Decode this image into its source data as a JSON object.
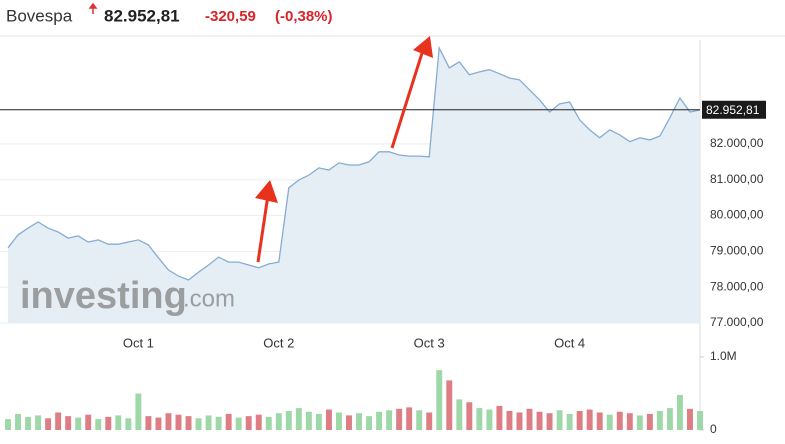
{
  "chart_data": {
    "type": "line",
    "title": "Bovespa",
    "change": "-320,59",
    "change_percent": "(-0,38%)",
    "line_color": "#86acd4",
    "area_color": "#e5eef5",
    "price_line": {
      "value": 82952.81,
      "label": "82.952,81"
    },
    "watermark": {
      "brand": "investing",
      "suffix": ".com"
    },
    "categories": [
      null,
      null,
      null,
      null,
      null,
      null,
      null,
      null,
      null,
      null,
      null,
      null,
      null,
      "Oct 1",
      null,
      null,
      null,
      null,
      null,
      null,
      null,
      null,
      null,
      null,
      null,
      null,
      null,
      "Oct 2",
      null,
      null,
      null,
      null,
      null,
      null,
      null,
      null,
      null,
      null,
      null,
      null,
      null,
      null,
      "Oct 3",
      null,
      null,
      null,
      null,
      null,
      null,
      null,
      null,
      null,
      null,
      null,
      null,
      null,
      "Oct 4",
      null,
      null,
      null,
      null,
      null,
      null,
      null,
      null,
      null,
      null,
      null,
      null,
      null
    ],
    "values": [
      79100,
      79460,
      79650,
      79820,
      79650,
      79540,
      79370,
      79430,
      79260,
      79320,
      79200,
      79200,
      79260,
      79320,
      79180,
      78820,
      78480,
      78310,
      78200,
      78420,
      78620,
      78840,
      78700,
      78700,
      78620,
      78540,
      78650,
      78700,
      80770,
      80990,
      81130,
      81330,
      81270,
      81470,
      81410,
      81410,
      81500,
      81780,
      81780,
      81690,
      81660,
      81660,
      81640,
      84680,
      84120,
      84290,
      83930,
      84010,
      84070,
      83960,
      83840,
      83790,
      83510,
      83230,
      82890,
      83120,
      83170,
      82670,
      82390,
      82170,
      82390,
      82250,
      82060,
      82170,
      82110,
      82220,
      82730,
      83280,
      82890,
      82950
    ],
    "ylim": [
      77000,
      84900
    ],
    "yticks": [
      {
        "value": 77000,
        "label": "77.000,00"
      },
      {
        "value": 78000,
        "label": "78.000,00"
      },
      {
        "value": 79000,
        "label": "79.000,00"
      },
      {
        "value": 80000,
        "label": "80.000,00"
      },
      {
        "value": 81000,
        "label": "81.000,00"
      },
      {
        "value": 82000,
        "label": "82.000,00"
      }
    ],
    "volume": {
      "up_color": "#9fd8a8",
      "down_color": "#dd7d84",
      "values": [
        150000,
        220000,
        180000,
        200000,
        160000,
        240000,
        190000,
        170000,
        210000,
        150000,
        180000,
        200000,
        160000,
        500000,
        190000,
        170000,
        230000,
        210000,
        190000,
        160000,
        200000,
        180000,
        220000,
        170000,
        190000,
        210000,
        180000,
        230000,
        260000,
        300000,
        250000,
        220000,
        280000,
        240000,
        200000,
        230000,
        190000,
        250000,
        270000,
        290000,
        310000,
        270000,
        240000,
        820000,
        680000,
        420000,
        380000,
        300000,
        280000,
        330000,
        260000,
        240000,
        290000,
        250000,
        230000,
        270000,
        220000,
        260000,
        280000,
        240000,
        210000,
        250000,
        230000,
        200000,
        220000,
        260000,
        300000,
        480000,
        290000,
        260000
      ],
      "y2lim": [
        0,
        1000000
      ],
      "y2ticks": [
        0,
        {
          "value": 1000000,
          "label": "1.0M"
        }
      ]
    }
  }
}
